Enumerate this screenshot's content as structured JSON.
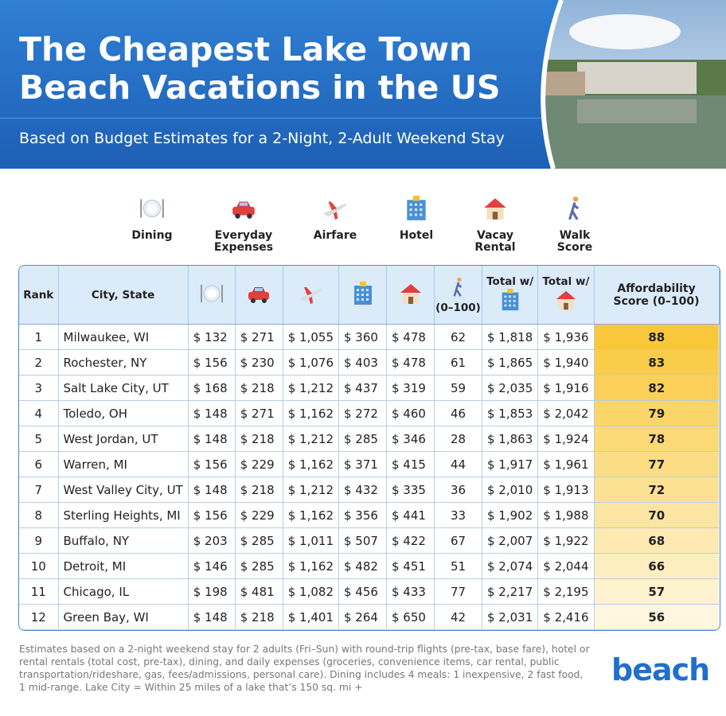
{
  "header": {
    "title": "The Cheapest Lake Town Beach Vacations in the US",
    "subtitle": "Based on Budget Estimates for a 2-Night, 2-Adult Weekend Stay"
  },
  "legend": [
    "Dining",
    "Everyday Expenses",
    "Airfare",
    "Hotel",
    "Vacay Rental",
    "Walk Score"
  ],
  "table": {
    "header": {
      "rank": "Rank",
      "city": "City, State",
      "walk": "(0–100)",
      "total_hotel": "Total w/",
      "total_rental": "Total w/",
      "score": "Affordability Score (0–100)"
    },
    "rows": [
      [
        "1",
        "Milwaukee, WI",
        "$ 132",
        "$ 271",
        "$ 1,055",
        "$ 360",
        "$ 478",
        "62",
        "$ 1,818",
        "$ 1,936",
        "88"
      ],
      [
        "2",
        "Rochester, NY",
        "$ 156",
        "$ 230",
        "$ 1,076",
        "$ 403",
        "$ 478",
        "61",
        "$ 1,865",
        "$ 1,940",
        "83"
      ],
      [
        "3",
        "Salt Lake City, UT",
        "$ 168",
        "$ 218",
        "$ 1,212",
        "$ 437",
        "$ 319",
        "59",
        "$ 2,035",
        "$ 1,916",
        "82"
      ],
      [
        "4",
        "Toledo, OH",
        "$ 148",
        "$ 271",
        "$ 1,162",
        "$ 272",
        "$ 460",
        "46",
        "$ 1,853",
        "$ 2,042",
        "79"
      ],
      [
        "5",
        "West Jordan, UT",
        "$ 148",
        "$ 218",
        "$ 1,212",
        "$ 285",
        "$ 346",
        "28",
        "$ 1,863",
        "$ 1,924",
        "78"
      ],
      [
        "6",
        "Warren, MI",
        "$ 156",
        "$ 229",
        "$ 1,162",
        "$ 371",
        "$ 415",
        "44",
        "$ 1,917",
        "$ 1,961",
        "77"
      ],
      [
        "7",
        "West Valley City, UT",
        "$ 148",
        "$ 218",
        "$ 1,212",
        "$ 432",
        "$ 335",
        "36",
        "$ 2,010",
        "$ 1,913",
        "72"
      ],
      [
        "8",
        "Sterling Heights, MI",
        "$ 156",
        "$ 229",
        "$ 1,162",
        "$ 356",
        "$ 441",
        "33",
        "$ 1,902",
        "$ 1,988",
        "70"
      ],
      [
        "9",
        "Buffalo, NY",
        "$ 203",
        "$ 285",
        "$ 1,011",
        "$ 507",
        "$ 422",
        "67",
        "$ 2,007",
        "$ 1,922",
        "68"
      ],
      [
        "10",
        "Detroit, MI",
        "$ 146",
        "$ 285",
        "$ 1,162",
        "$ 482",
        "$ 451",
        "51",
        "$ 2,074",
        "$ 2,044",
        "66"
      ],
      [
        "11",
        "Chicago, IL",
        "$ 198",
        "$ 481",
        "$ 1,082",
        "$ 456",
        "$ 433",
        "77",
        "$ 2,217",
        "$ 2,195",
        "57"
      ],
      [
        "12",
        "Green Bay, WI",
        "$ 148",
        "$ 218",
        "$ 1,401",
        "$ 264",
        "$ 650",
        "42",
        "$ 2,031",
        "$ 2,416",
        "56"
      ]
    ]
  },
  "footer": {
    "note": "Estimates based on a 2-night weekend stay for 2 adults (Fri–Sun) with round-trip flights (pre-tax, base fare), hotel or rental rentals (total cost, pre-tax), dining, and daily expenses (groceries, convenience items, car rental, public transportation/rideshare, gas, fees/admissions, personal care). Dining includes 4 meals: 1 inexpensive, 2 fast food, 1 mid-range. Lake City = Within 25 miles of a lake that’s 150 sq. mi +",
    "brand": "beach"
  }
}
